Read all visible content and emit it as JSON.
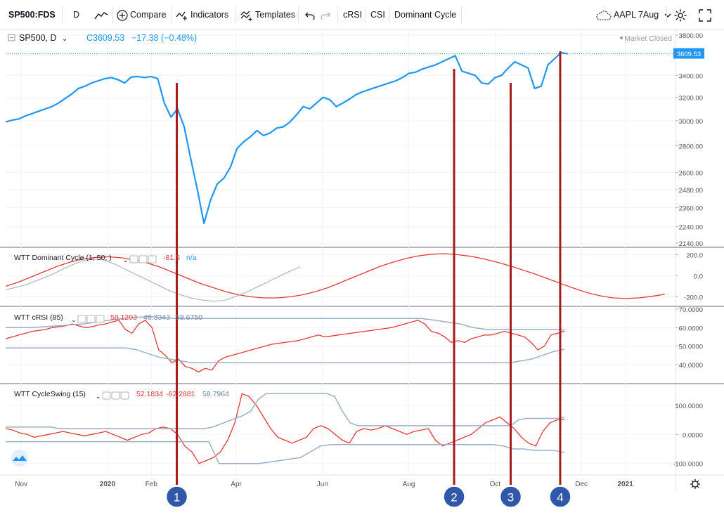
{
  "toolbar": {
    "symbol": "SP500:FDS",
    "interval": "D",
    "compare": "Compare",
    "indicators": "Indicators",
    "templates": "Templates",
    "study1": "cRSI",
    "study2": "CSI",
    "study3": "Dominant Cycle",
    "alert": "AAPL 7Aug"
  },
  "legend": {
    "symbol": "SP500, D",
    "close": "C3609.53",
    "change": "−17.38 (−0.48%)",
    "market_status": "Market Closed",
    "last_price": "3609.53"
  },
  "colors": {
    "price": "#2196f3",
    "red": "#e53935",
    "grey_blue": "#9bb0c8",
    "marker": "#a51c1c",
    "badge": "#2f59a8",
    "axis_text": "#50535e"
  },
  "chart_data": [
    {
      "type": "line",
      "series": [
        {
          "values": [
            2990,
            3005,
            3015,
            3040,
            3060,
            3080,
            3100,
            3120,
            3150,
            3190,
            3230,
            3280,
            3300,
            3330,
            3350,
            3370,
            3380,
            3360,
            3330,
            3385,
            3390,
            3380,
            3390,
            3370,
            3150,
            3030,
            3100,
            2950,
            2700,
            2480,
            2260,
            2410,
            2520,
            2560,
            2640,
            2780,
            2830,
            2870,
            2920,
            2880,
            2900,
            2940,
            2950,
            2990,
            3050,
            3120,
            3100,
            3150,
            3200,
            3180,
            3120,
            3150,
            3185,
            3225,
            3250,
            3270,
            3290,
            3310,
            3330,
            3350,
            3380,
            3420,
            3430,
            3460,
            3480,
            3500,
            3530,
            3560,
            3590,
            3440,
            3420,
            3400,
            3330,
            3320,
            3380,
            3400,
            3470,
            3530,
            3500,
            3470,
            3280,
            3300,
            3500,
            3560,
            3620,
            3609.53
          ]
        }
      ],
      "yticks": [
        "3800.00",
        "3600.00",
        "3400.00",
        "3200.00",
        "3000.00",
        "2800.00",
        "2600.00",
        "2480.00",
        "2360.00",
        "2240.00",
        "2140.00"
      ],
      "ylim": [
        2140,
        3800
      ]
    },
    {
      "type": "line",
      "title": "WTT Dominant Cycle (1, 50, )",
      "readout": [
        "-81.5",
        "n/a"
      ],
      "series": [
        {
          "values": [
            -100,
            -60,
            -10,
            40,
            90,
            130,
            160,
            175,
            180,
            170,
            150,
            120,
            80,
            30,
            -20,
            -70,
            -110,
            -150,
            -180,
            -200,
            -210,
            -210,
            -200,
            -180,
            -150,
            -110,
            -60,
            -10,
            40,
            90,
            130,
            165,
            190,
            205,
            210,
            200,
            185,
            160,
            130,
            95,
            55,
            15,
            -30,
            -75,
            -120,
            -160,
            -190,
            -210,
            -215,
            -210,
            -195,
            -175
          ]
        },
        {
          "values": [
            -130,
            -110,
            -80,
            -40,
            0,
            50,
            100,
            140,
            160,
            150,
            110,
            60,
            10,
            -40,
            -90,
            -140,
            -180,
            -210,
            -230,
            -240,
            -235,
            -200,
            -160,
            -110,
            -60,
            -10,
            40,
            85
          ]
        }
      ],
      "yticks": [
        "200.0",
        "0.0",
        "-200.0"
      ],
      "ylim": [
        -250,
        230
      ]
    },
    {
      "type": "line",
      "title": "WTT cRSI (85)",
      "readout": [
        "58.1203",
        "48.3343",
        "58.6750"
      ],
      "series": [
        {
          "values": [
            54,
            55,
            56,
            57,
            58,
            58.5,
            59,
            60,
            60.5,
            61,
            62,
            61,
            60,
            60.5,
            61.5,
            62,
            63,
            64,
            59,
            57,
            62,
            64,
            60,
            48,
            45,
            41,
            43,
            39,
            38,
            36,
            38,
            37,
            42,
            44,
            45,
            46,
            47,
            48,
            49,
            50,
            51,
            51.5,
            52,
            52.5,
            53,
            54,
            55,
            56,
            55,
            55.5,
            56,
            56.5,
            57,
            57.5,
            58,
            58.5,
            59,
            59.5,
            60,
            61,
            62,
            63,
            64,
            62,
            58,
            57,
            55,
            52,
            53,
            52,
            54,
            55,
            56,
            56,
            57,
            58,
            57,
            56,
            55,
            52,
            48,
            50,
            56,
            57,
            58.12
          ]
        },
        {
          "values": [
            60,
            60,
            60,
            60.5,
            61,
            61.5,
            62,
            63,
            64,
            65,
            65.5,
            66,
            65.5,
            65,
            65,
            65,
            65,
            65,
            65,
            65,
            65,
            65,
            65,
            65,
            65,
            65,
            65,
            65,
            65,
            65,
            65,
            65,
            65,
            64,
            63,
            62,
            60,
            59,
            59,
            59,
            59,
            59,
            59,
            58.68
          ]
        },
        {
          "values": [
            49,
            49,
            49,
            49,
            49,
            49,
            49,
            49,
            49,
            49,
            49,
            49,
            48,
            46,
            44,
            43,
            42,
            41,
            41,
            41,
            41,
            41,
            41,
            41,
            41,
            41,
            41,
            41,
            41,
            41,
            41,
            41,
            41,
            41,
            41,
            41,
            41,
            41,
            41,
            41,
            41,
            41,
            41,
            41,
            41,
            41,
            41,
            42,
            43,
            45,
            47,
            48.33
          ]
        }
      ],
      "yticks": [
        "70.0000",
        "60.0000",
        "50.0000",
        "40.0000"
      ],
      "ylim": [
        32,
        70
      ]
    },
    {
      "type": "line",
      "title": "WTT CycleSwing (15)",
      "readout": [
        "52.1834",
        "-62.2881",
        "58.7964"
      ],
      "series": [
        {
          "values": [
            20,
            15,
            5,
            0,
            -10,
            -5,
            0,
            5,
            10,
            5,
            0,
            -5,
            0,
            5,
            10,
            0,
            -10,
            -20,
            -10,
            0,
            5,
            20,
            25,
            20,
            0,
            -40,
            -60,
            -100,
            -90,
            -80,
            -60,
            -20,
            40,
            140,
            130,
            100,
            60,
            20,
            -10,
            -20,
            -30,
            -20,
            -10,
            20,
            30,
            20,
            0,
            -20,
            -30,
            10,
            20,
            15,
            20,
            30,
            20,
            10,
            0,
            10,
            15,
            20,
            -20,
            -40,
            -30,
            -20,
            -10,
            0,
            20,
            40,
            50,
            60,
            40,
            20,
            -10,
            -30,
            -40,
            10,
            40,
            50,
            52.18
          ]
        },
        {
          "values": [
            25,
            25,
            25,
            25,
            25,
            25,
            25,
            20,
            20,
            20,
            20,
            20,
            20,
            20,
            20,
            20,
            20,
            20,
            20,
            20,
            20,
            20,
            20,
            20,
            20,
            20,
            20,
            25,
            35,
            45,
            55,
            65,
            80,
            120,
            140,
            140,
            140,
            140,
            140,
            140,
            140,
            140,
            140,
            130,
            80,
            40,
            30,
            30,
            30,
            30,
            30,
            30,
            30,
            30,
            30,
            30,
            30,
            30,
            30,
            30,
            30,
            30,
            30,
            30,
            30,
            30,
            30,
            50,
            55,
            55,
            55,
            55,
            55,
            58.8
          ]
        },
        {
          "values": [
            -25,
            -25,
            -25,
            -25,
            -25,
            -25,
            -25,
            -25,
            -25,
            -25,
            -25,
            -25,
            -25,
            -25,
            -25,
            -25,
            -25,
            -25,
            -25,
            -25,
            -25,
            -100,
            -100,
            -100,
            -100,
            -100,
            -95,
            -90,
            -85,
            -80,
            -60,
            -40,
            -35,
            -35,
            -35,
            -35,
            -35,
            -35,
            -35,
            -35,
            -35,
            -35,
            -35,
            -35,
            -35,
            -35,
            -35,
            -35,
            -35,
            -40,
            -50,
            -50,
            -55,
            -55,
            -55,
            -62.29
          ]
        }
      ],
      "yticks": [
        "100.0000",
        "0.0000",
        "-100.0000"
      ],
      "ylim": [
        -125,
        165
      ]
    }
  ],
  "xaxis": {
    "ticks": [
      "Nov",
      "2020",
      "Feb",
      "Apr",
      "Jun",
      "Aug",
      "Oct",
      "Dec",
      "2021"
    ]
  },
  "markers": [
    {
      "label": "1",
      "x_date": "2020-02-19"
    },
    {
      "label": "2",
      "x_date": "2020-09-02"
    },
    {
      "label": "3",
      "x_date": "2020-10-12"
    },
    {
      "label": "4",
      "x_date": "2020-11-16"
    }
  ]
}
